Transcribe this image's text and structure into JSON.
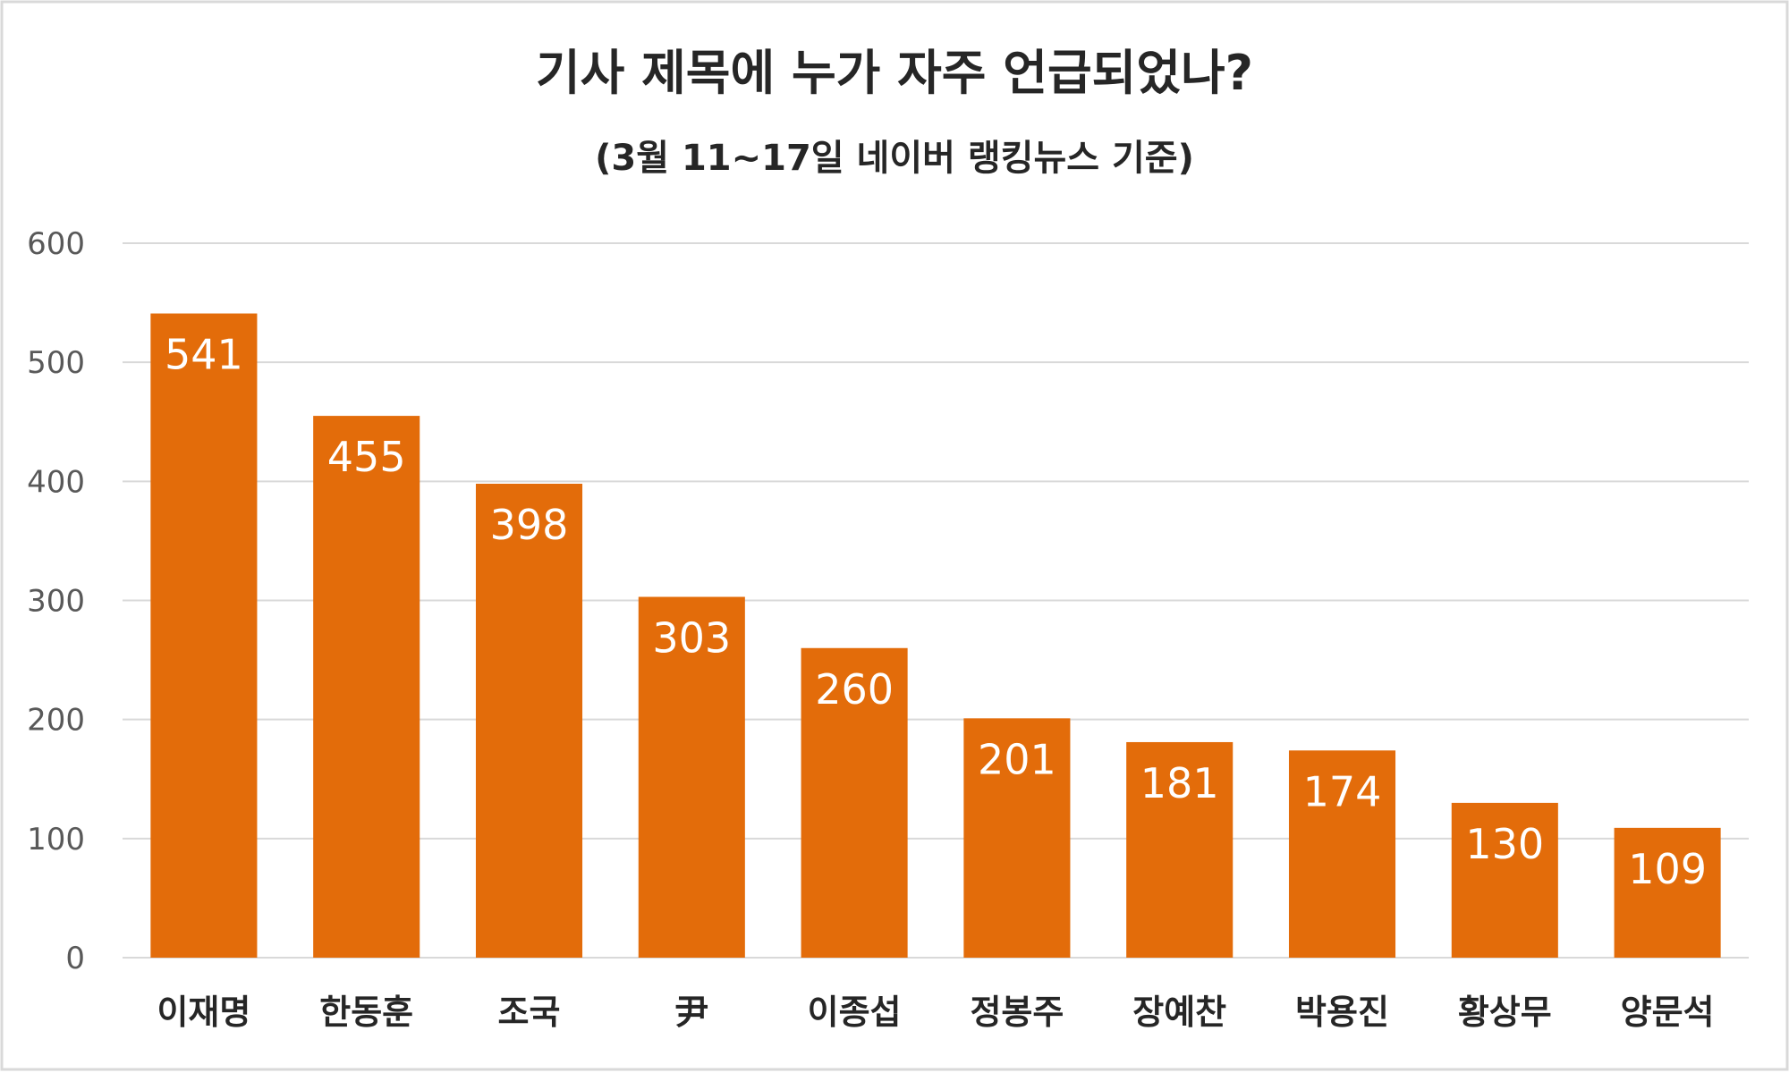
{
  "chart_data": {
    "type": "bar",
    "title": "기사 제목에 누가 자주 언급되었나?",
    "subtitle": "(3월 11~17일 네이버 랭킹뉴스 기준)",
    "categories": [
      "이재명",
      "한동훈",
      "조국",
      "尹",
      "이종섭",
      "정봉주",
      "장예찬",
      "박용진",
      "황상무",
      "양문석"
    ],
    "values": [
      541,
      455,
      398,
      303,
      260,
      201,
      181,
      174,
      130,
      109
    ],
    "yticks": [
      0,
      100,
      200,
      300,
      400,
      500,
      600
    ],
    "ylim": [
      0,
      600
    ],
    "xlabel": "",
    "ylabel": "",
    "grid": true,
    "legend": "none",
    "bar_color": "#E36C0A",
    "label_color": "#FFFFFF"
  }
}
